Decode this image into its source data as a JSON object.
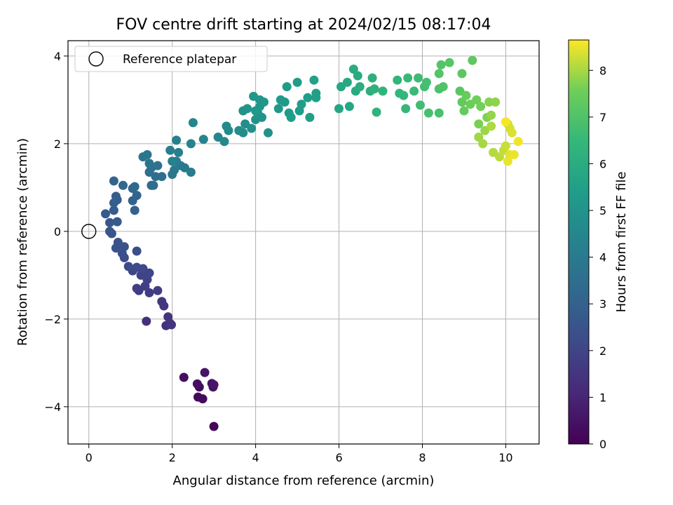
{
  "chart_data": {
    "type": "scatter",
    "title": "FOV centre drift starting at 2024/02/15 08:17:04",
    "xlabel": "Angular distance from reference (arcmin)",
    "ylabel": "Rotation from reference (arcmin)",
    "xlim": [
      -0.5,
      10.8
    ],
    "ylim": [
      -4.85,
      4.35
    ],
    "xticks": [
      0,
      2,
      4,
      6,
      8,
      10
    ],
    "yticks": [
      -4,
      -2,
      0,
      2,
      4
    ],
    "xtick_labels": [
      "0",
      "2",
      "4",
      "6",
      "8",
      "10"
    ],
    "ytick_labels": [
      "−4",
      "−2",
      "0",
      "2",
      "4"
    ],
    "grid": true,
    "legend": {
      "placement": "top-left",
      "entries": [
        "Reference platepar"
      ]
    },
    "reference_point": {
      "x": 0,
      "y": 0
    },
    "colorbar": {
      "label": "Hours from first FF file",
      "colormap": "viridis",
      "range": [
        0,
        8.65
      ],
      "ticks": [
        0,
        1,
        2,
        3,
        4,
        5,
        6,
        7,
        8
      ],
      "tick_labels": [
        "0",
        "1",
        "2",
        "3",
        "4",
        "5",
        "6",
        "7",
        "8"
      ]
    },
    "points": [
      [
        3.0,
        -4.45,
        0.1
      ],
      [
        2.62,
        -3.78,
        0.2
      ],
      [
        2.73,
        -3.82,
        0.25
      ],
      [
        2.65,
        -3.55,
        0.3
      ],
      [
        2.28,
        -3.33,
        0.35
      ],
      [
        2.6,
        -3.48,
        0.4
      ],
      [
        2.98,
        -3.55,
        0.45
      ],
      [
        2.95,
        -3.47,
        0.5
      ],
      [
        2.78,
        -3.22,
        0.55
      ],
      [
        3.0,
        -3.5,
        0.6
      ],
      [
        1.38,
        -2.05,
        1.3
      ],
      [
        1.85,
        -2.15,
        1.35
      ],
      [
        1.95,
        -2.1,
        1.4
      ],
      [
        1.9,
        -1.95,
        1.45
      ],
      [
        1.98,
        -2.13,
        1.5
      ],
      [
        1.8,
        -1.7,
        1.55
      ],
      [
        1.75,
        -1.6,
        1.6
      ],
      [
        1.2,
        -1.35,
        1.65
      ],
      [
        1.45,
        -1.4,
        1.7
      ],
      [
        1.65,
        -1.35,
        1.75
      ],
      [
        1.15,
        -1.3,
        1.8
      ],
      [
        1.35,
        -1.25,
        1.85
      ],
      [
        1.4,
        -1.1,
        1.9
      ],
      [
        1.25,
        -1.0,
        1.95
      ],
      [
        1.05,
        -0.9,
        2.0
      ],
      [
        1.45,
        -0.95,
        2.05
      ],
      [
        1.3,
        -0.85,
        2.1
      ],
      [
        1.15,
        -0.82,
        2.15
      ],
      [
        0.95,
        -0.8,
        2.2
      ],
      [
        0.85,
        -0.6,
        2.25
      ],
      [
        1.15,
        -0.45,
        2.3
      ],
      [
        0.8,
        -0.5,
        2.35
      ],
      [
        0.85,
        -0.35,
        2.4
      ],
      [
        0.7,
        -0.25,
        2.45
      ],
      [
        0.65,
        -0.38,
        2.5
      ],
      [
        0.55,
        -0.05,
        2.55
      ],
      [
        0.5,
        0.0,
        2.6
      ],
      [
        0.5,
        0.2,
        2.65
      ],
      [
        0.68,
        0.22,
        2.7
      ],
      [
        0.4,
        0.4,
        2.75
      ],
      [
        0.6,
        0.48,
        2.8
      ],
      [
        0.68,
        0.72,
        2.85
      ],
      [
        0.65,
        0.8,
        2.9
      ],
      [
        0.6,
        0.65,
        2.95
      ],
      [
        1.1,
        0.48,
        3.0
      ],
      [
        1.05,
        0.7,
        3.05
      ],
      [
        1.15,
        0.82,
        3.1
      ],
      [
        0.6,
        1.15,
        3.15
      ],
      [
        0.82,
        1.05,
        3.2
      ],
      [
        1.05,
        0.98,
        3.25
      ],
      [
        1.1,
        1.02,
        3.3
      ],
      [
        1.5,
        1.05,
        3.35
      ],
      [
        1.55,
        1.05,
        3.4
      ],
      [
        1.6,
        1.25,
        3.45
      ],
      [
        1.75,
        1.25,
        3.5
      ],
      [
        1.45,
        1.35,
        3.55
      ],
      [
        1.5,
        1.45,
        3.6
      ],
      [
        1.65,
        1.5,
        3.65
      ],
      [
        1.45,
        1.55,
        3.7
      ],
      [
        1.3,
        1.7,
        3.75
      ],
      [
        1.4,
        1.75,
        3.8
      ],
      [
        2.0,
        1.3,
        3.85
      ],
      [
        2.05,
        1.4,
        3.9
      ],
      [
        2.2,
        1.5,
        3.95
      ],
      [
        2.3,
        1.45,
        4.0
      ],
      [
        2.45,
        1.35,
        4.05
      ],
      [
        2.1,
        1.6,
        4.1
      ],
      [
        2.15,
        1.8,
        4.15
      ],
      [
        1.95,
        1.85,
        4.2
      ],
      [
        2.0,
        1.6,
        4.25
      ],
      [
        2.1,
        2.08,
        4.3
      ],
      [
        2.45,
        2.0,
        4.35
      ],
      [
        2.75,
        2.1,
        4.4
      ],
      [
        2.5,
        2.48,
        4.45
      ],
      [
        3.1,
        2.15,
        4.5
      ],
      [
        3.25,
        2.05,
        4.55
      ],
      [
        3.35,
        2.3,
        4.6
      ],
      [
        3.3,
        2.4,
        4.65
      ],
      [
        3.6,
        2.3,
        4.7
      ],
      [
        3.7,
        2.25,
        4.75
      ],
      [
        3.75,
        2.45,
        4.8
      ],
      [
        3.9,
        2.35,
        4.85
      ],
      [
        4.3,
        2.25,
        4.9
      ],
      [
        4.0,
        2.55,
        4.95
      ],
      [
        4.15,
        2.6,
        4.98
      ],
      [
        3.7,
        2.75,
        5.0
      ],
      [
        3.8,
        2.8,
        5.02
      ],
      [
        4.05,
        2.7,
        5.05
      ],
      [
        4.1,
        2.85,
        5.08
      ],
      [
        3.95,
        3.08,
        5.1
      ],
      [
        4.1,
        3.0,
        5.12
      ],
      [
        4.2,
        2.95,
        5.15
      ],
      [
        4.0,
        2.75,
        5.18
      ],
      [
        4.55,
        2.8,
        5.2
      ],
      [
        4.7,
        2.95,
        5.22
      ],
      [
        4.6,
        3.0,
        5.25
      ],
      [
        4.8,
        2.7,
        5.28
      ],
      [
        4.75,
        3.3,
        5.3
      ],
      [
        5.0,
        3.4,
        5.32
      ],
      [
        4.85,
        2.6,
        5.35
      ],
      [
        5.05,
        2.75,
        5.38
      ],
      [
        5.1,
        2.9,
        5.4
      ],
      [
        5.25,
        3.05,
        5.42
      ],
      [
        5.3,
        2.6,
        5.45
      ],
      [
        5.45,
        3.05,
        5.48
      ],
      [
        5.45,
        3.15,
        5.5
      ],
      [
        5.4,
        3.45,
        5.52
      ],
      [
        6.0,
        2.8,
        5.7
      ],
      [
        6.25,
        2.85,
        5.75
      ],
      [
        6.05,
        3.3,
        5.8
      ],
      [
        6.2,
        3.4,
        5.85
      ],
      [
        6.4,
        3.2,
        5.9
      ],
      [
        6.45,
        3.55,
        5.95
      ],
      [
        6.35,
        3.7,
        6.0
      ],
      [
        6.5,
        3.3,
        6.05
      ],
      [
        6.75,
        3.2,
        6.1
      ],
      [
        6.8,
        3.5,
        6.15
      ],
      [
        6.85,
        3.25,
        6.2
      ],
      [
        6.9,
        2.72,
        6.25
      ],
      [
        7.05,
        3.2,
        6.3
      ],
      [
        7.4,
        3.45,
        6.35
      ],
      [
        7.45,
        3.15,
        6.4
      ],
      [
        7.55,
        3.1,
        6.45
      ],
      [
        7.6,
        2.8,
        6.5
      ],
      [
        7.65,
        3.5,
        6.55
      ],
      [
        7.8,
        3.2,
        6.6
      ],
      [
        7.9,
        3.5,
        6.65
      ],
      [
        7.95,
        2.88,
        6.7
      ],
      [
        8.05,
        3.3,
        6.75
      ],
      [
        8.1,
        3.4,
        6.8
      ],
      [
        8.15,
        2.7,
        6.85
      ],
      [
        8.4,
        2.7,
        6.9
      ],
      [
        8.4,
        3.25,
        6.95
      ],
      [
        8.5,
        3.3,
        7.0
      ],
      [
        8.45,
        3.8,
        7.05
      ],
      [
        8.4,
        3.6,
        7.1
      ],
      [
        8.65,
        3.85,
        7.15
      ],
      [
        8.9,
        3.2,
        7.2
      ],
      [
        8.95,
        3.6,
        7.25
      ],
      [
        9.2,
        3.9,
        7.3
      ],
      [
        8.95,
        2.95,
        7.35
      ],
      [
        9.0,
        2.75,
        7.4
      ],
      [
        9.05,
        3.1,
        7.45
      ],
      [
        9.15,
        2.9,
        7.5
      ],
      [
        9.3,
        3.0,
        7.55
      ],
      [
        9.4,
        2.85,
        7.6
      ],
      [
        9.35,
        2.45,
        7.65
      ],
      [
        9.55,
        2.6,
        7.7
      ],
      [
        9.6,
        2.95,
        7.75
      ],
      [
        9.75,
        2.95,
        7.8
      ],
      [
        9.65,
        2.65,
        7.85
      ],
      [
        9.5,
        2.3,
        7.9
      ],
      [
        9.35,
        2.15,
        7.95
      ],
      [
        9.45,
        2.0,
        8.0
      ],
      [
        9.65,
        2.4,
        8.05
      ],
      [
        9.7,
        1.8,
        8.1
      ],
      [
        9.85,
        1.7,
        8.15
      ],
      [
        9.95,
        1.85,
        8.2
      ],
      [
        10.0,
        1.95,
        8.25
      ],
      [
        10.05,
        2.45,
        8.3
      ],
      [
        10.1,
        2.35,
        8.35
      ],
      [
        10.15,
        2.25,
        8.4
      ],
      [
        10.1,
        1.75,
        8.45
      ],
      [
        10.05,
        1.6,
        8.5
      ],
      [
        10.2,
        1.75,
        8.52
      ],
      [
        10.3,
        2.05,
        8.55
      ],
      [
        10.0,
        2.5,
        8.6
      ]
    ]
  }
}
